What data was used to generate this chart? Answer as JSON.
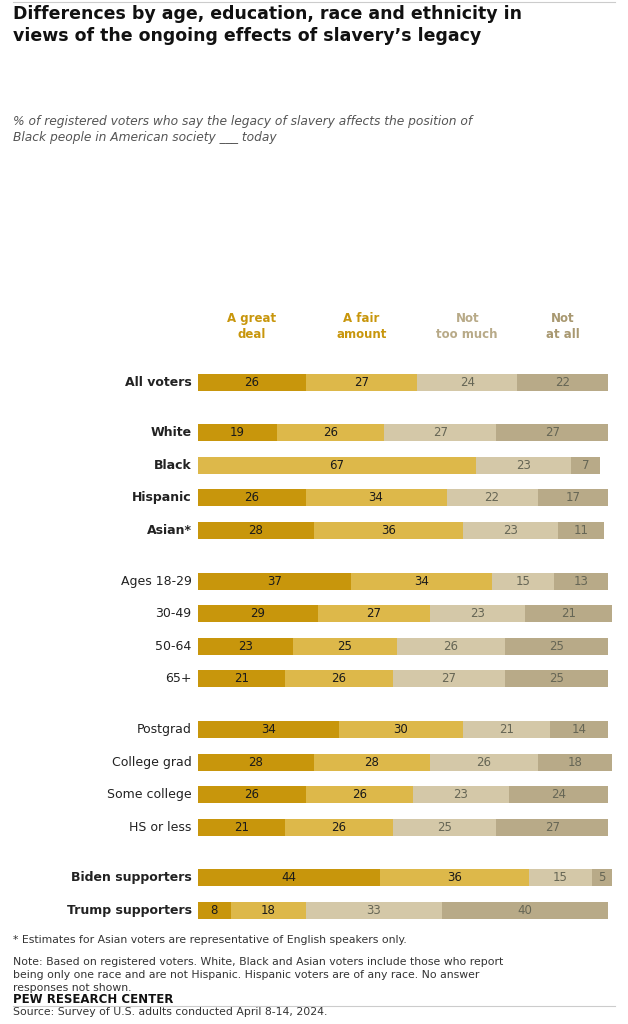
{
  "title": "Differences by age, education, race and ethnicity in\nviews of the ongoing effects of slavery’s legacy",
  "subtitle": "% of registered voters who say the legacy of slavery affects the position of\nBlack people in American society ___ today",
  "col_labels": [
    "A great\ndeal",
    "A fair\namount",
    "Not\ntoo much",
    "Not\nat all"
  ],
  "col_label_colors": [
    "#C8960C",
    "#C8960C",
    "#B8AA88",
    "#A89870"
  ],
  "categories": [
    "All voters",
    "White",
    "Black",
    "Hispanic",
    "Asian*",
    "Ages 18-29",
    "30-49",
    "50-64",
    "65+",
    "Postgrad",
    "College grad",
    "Some college",
    "HS or less",
    "Biden supporters",
    "Trump supporters"
  ],
  "values": [
    [
      26,
      27,
      24,
      22
    ],
    [
      19,
      26,
      27,
      27
    ],
    [
      67,
      0,
      23,
      7
    ],
    [
      26,
      34,
      22,
      17
    ],
    [
      28,
      36,
      23,
      11
    ],
    [
      37,
      34,
      15,
      13
    ],
    [
      29,
      27,
      23,
      21
    ],
    [
      23,
      25,
      26,
      25
    ],
    [
      21,
      26,
      27,
      25
    ],
    [
      34,
      30,
      21,
      14
    ],
    [
      28,
      28,
      26,
      18
    ],
    [
      26,
      26,
      23,
      24
    ],
    [
      21,
      26,
      25,
      27
    ],
    [
      44,
      36,
      15,
      5
    ],
    [
      8,
      18,
      33,
      40
    ]
  ],
  "bold_categories": [
    "All voters",
    "White",
    "Black",
    "Hispanic",
    "Asian*",
    "Biden supporters",
    "Trump supporters"
  ],
  "footnote_star": "* Estimates for Asian voters are representative of English speakers only.",
  "footnote_note": "Note: Based on registered voters. White, Black and Asian voters include those who report\nbeing only one race and are not Hispanic. Hispanic voters are of any race. No answer\nresponses not shown.",
  "footnote_source": "Source: Survey of U.S. adults conducted April 8-14, 2024.",
  "source_label": "PEW RESEARCH CENTER",
  "bg_color": "#FFFFFF",
  "bar_colors": [
    "#C8960C",
    "#DDB84A",
    "#D4C8A8",
    "#B8AA88"
  ],
  "black_row_color": "#DDB84A",
  "label_color_12": "#333333",
  "label_color_34": "#888877"
}
